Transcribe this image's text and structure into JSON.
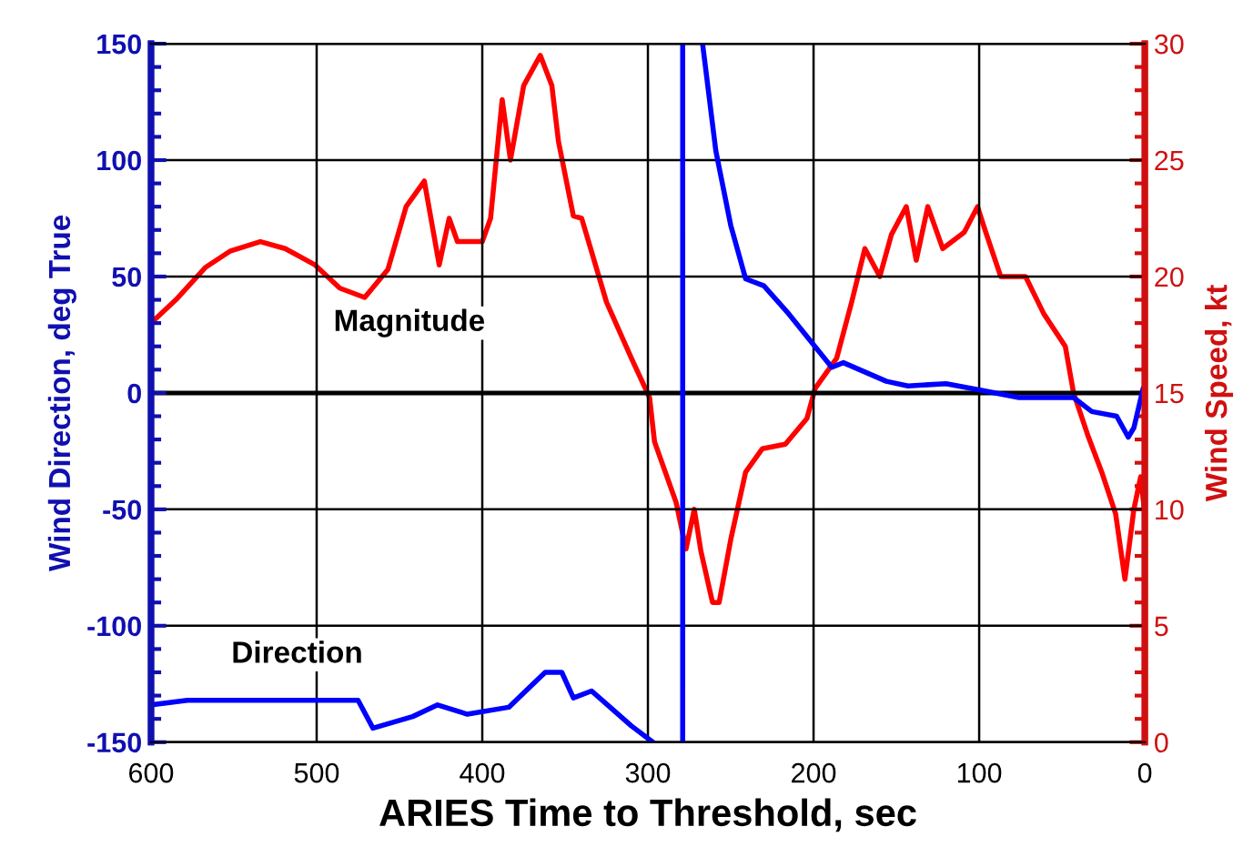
{
  "chart_data": {
    "type": "line",
    "xlabel": "ARIES Time to Threshold, sec",
    "ylabel": "Wind Direction, deg True",
    "y2label": "Wind Speed, kt",
    "xlim": [
      600,
      0
    ],
    "xticks": [
      600,
      500,
      400,
      300,
      200,
      100,
      0
    ],
    "ylim": [
      -150,
      150
    ],
    "yticks": [
      -150,
      -100,
      -50,
      0,
      50,
      100,
      150
    ],
    "y2lim": [
      0,
      30
    ],
    "y2ticks": [
      0,
      5,
      10,
      15,
      20,
      25,
      30
    ],
    "grid": true,
    "legend": false,
    "marker": "none",
    "line_style": "solid",
    "ref_lines": [
      {
        "axis": "y",
        "value": 0,
        "color": "#000000"
      }
    ],
    "series": [
      {
        "name": "Direction",
        "color": "#0000ff",
        "x": [
          600,
          578,
          475,
          466,
          442,
          427,
          409,
          384,
          362,
          352,
          345,
          334,
          310,
          297,
          null,
          279,
          279,
          null,
          267,
          259,
          250,
          241,
          230,
          215,
          189,
          182,
          156,
          143,
          120,
          98,
          76,
          43,
          32,
          17,
          10,
          6.6,
          1,
          0
        ],
        "values": [
          -134,
          -132,
          -132,
          -144,
          -139,
          -134,
          -138,
          -135,
          -120,
          -120,
          -131,
          -128,
          -143,
          -150,
          null,
          -150,
          150,
          null,
          150,
          104,
          72,
          49,
          46,
          34,
          11,
          13,
          5,
          3,
          4,
          1,
          -2,
          -2,
          -8,
          -10,
          -19,
          -15,
          2,
          -5
        ]
      },
      {
        "name": "Magnitude",
        "color": "#ff0000",
        "axis": "y2",
        "x": [
          600,
          585,
          567,
          552,
          534,
          519,
          501,
          486,
          471,
          457,
          446,
          435,
          426,
          420,
          415,
          400,
          395,
          388,
          383,
          375,
          365,
          358,
          354,
          345,
          340,
          325,
          310,
          299,
          296,
          283,
          277,
          272,
          268,
          261,
          257,
          250,
          241,
          231,
          217,
          204,
          199,
          186,
          177,
          169,
          160,
          153,
          144,
          138,
          131,
          122,
          109,
          101,
          96,
          87,
          72,
          61,
          48,
          43,
          34,
          26,
          17.6,
          12,
          6.6,
          2.5,
          0
        ],
        "values": [
          18,
          19,
          20.4,
          21.1,
          21.5,
          21.2,
          20.5,
          19.5,
          19.1,
          20.3,
          23,
          24.1,
          20.5,
          22.5,
          21.5,
          21.5,
          22.5,
          27.6,
          25,
          28.2,
          29.5,
          28.2,
          25.8,
          22.6,
          22.5,
          18.9,
          16.5,
          14.8,
          12.9,
          10.3,
          8.3,
          10,
          8.2,
          6,
          6,
          8.7,
          11.6,
          12.6,
          12.8,
          13.9,
          15.2,
          16.5,
          18.9,
          21.2,
          20,
          21.8,
          23,
          20.7,
          23,
          21.2,
          21.9,
          23,
          21.9,
          20,
          20,
          18.4,
          17,
          15,
          13.1,
          11.6,
          9.8,
          7,
          10,
          11.4,
          9.8
        ]
      }
    ]
  }
}
